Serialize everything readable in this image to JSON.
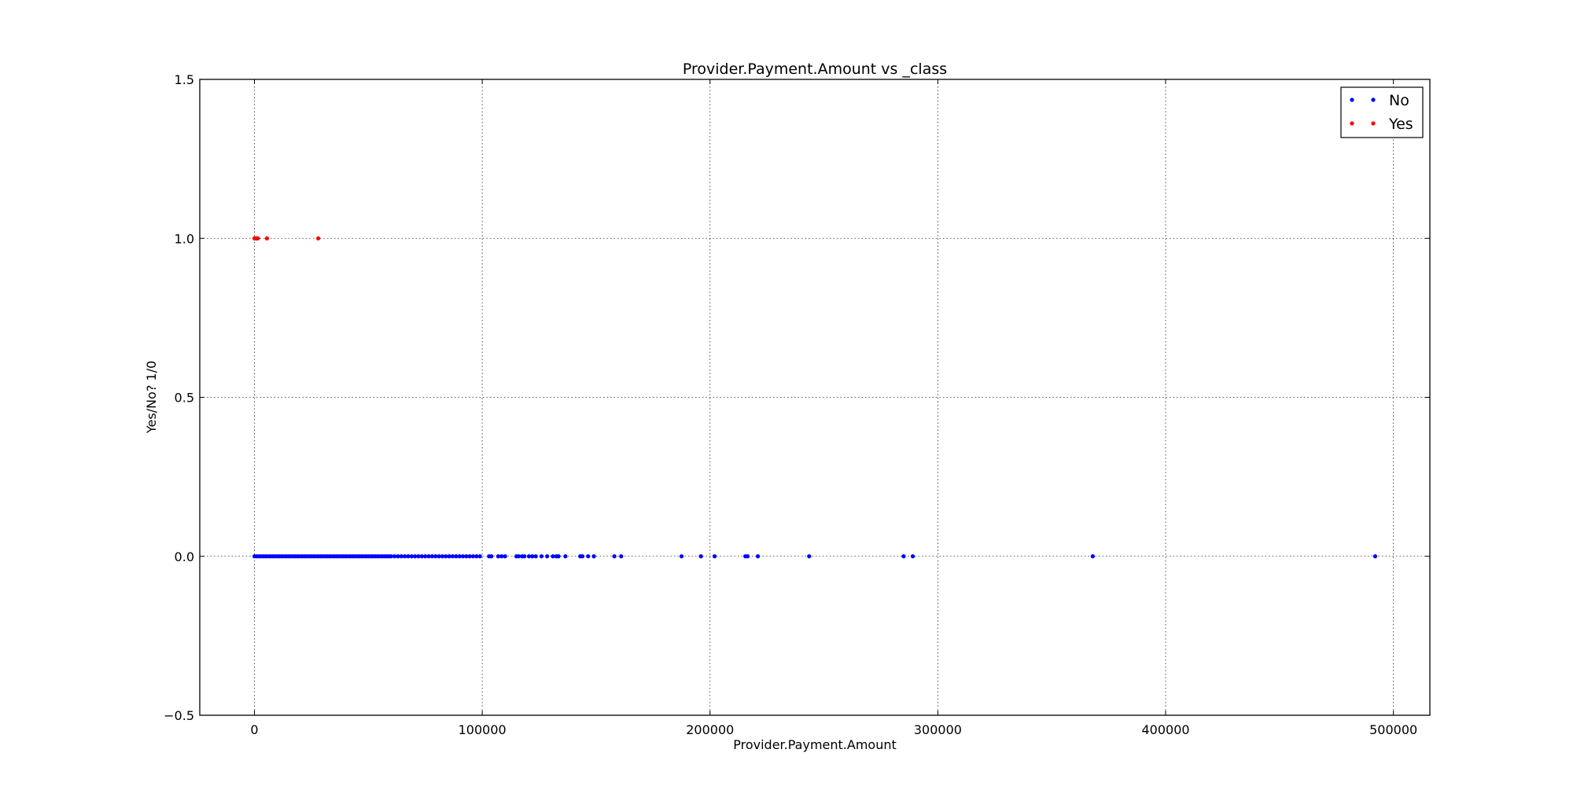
{
  "chart_data": {
    "type": "scatter",
    "title": "Provider.Payment.Amount vs _class",
    "xlabel": "Provider.Payment.Amount",
    "ylabel": "Yes/No? 1/0",
    "xlim": [
      -24000,
      516000
    ],
    "ylim": [
      -0.5,
      1.5
    ],
    "xticks": [
      0,
      100000,
      200000,
      300000,
      400000,
      500000
    ],
    "xtick_labels": [
      "0",
      "100000",
      "200000",
      "300000",
      "400000",
      "500000"
    ],
    "yticks": [
      -0.5,
      0.0,
      0.5,
      1.0,
      1.5
    ],
    "ytick_labels": [
      "−0.5",
      "0.0",
      "0.5",
      "1.0",
      "1.5"
    ],
    "grid": true,
    "legend": "top-right",
    "series": [
      {
        "name": "No",
        "color": "#0000ff",
        "x": [
          0,
          1000,
          2000,
          3000,
          4000,
          5000,
          6000,
          7000,
          8000,
          9000,
          10000,
          11000,
          12000,
          13000,
          14000,
          15000,
          16000,
          17000,
          18000,
          19000,
          20000,
          21000,
          22000,
          23000,
          24000,
          25000,
          26000,
          27000,
          28000,
          29000,
          30000,
          31000,
          32000,
          33000,
          34000,
          35000,
          36000,
          37000,
          38000,
          39000,
          40000,
          41000,
          42000,
          43000,
          44000,
          45000,
          46000,
          47000,
          48000,
          49000,
          50000,
          51000,
          52000,
          53000,
          54000,
          55000,
          56000,
          57000,
          58000,
          59000,
          60000,
          61500,
          63000,
          64500,
          66000,
          67500,
          69000,
          70500,
          72000,
          73500,
          75000,
          76500,
          78000,
          79500,
          81000,
          82500,
          84000,
          85500,
          87000,
          88500,
          90000,
          91500,
          93000,
          94500,
          96000,
          97500,
          99000,
          103000,
          104000,
          107000,
          108500,
          110000,
          115000,
          116000,
          117500,
          118500,
          120500,
          122000,
          123500,
          126000,
          128500,
          131000,
          132500,
          133500,
          136500,
          143000,
          144000,
          146500,
          149000,
          158000,
          161000,
          187500,
          196000,
          202000,
          215500,
          216500,
          221000,
          243500,
          285000,
          289000,
          368000,
          492000
        ],
        "y": [
          0,
          0,
          0,
          0,
          0,
          0,
          0,
          0,
          0,
          0,
          0,
          0,
          0,
          0,
          0,
          0,
          0,
          0,
          0,
          0,
          0,
          0,
          0,
          0,
          0,
          0,
          0,
          0,
          0,
          0,
          0,
          0,
          0,
          0,
          0,
          0,
          0,
          0,
          0,
          0,
          0,
          0,
          0,
          0,
          0,
          0,
          0,
          0,
          0,
          0,
          0,
          0,
          0,
          0,
          0,
          0,
          0,
          0,
          0,
          0,
          0,
          0,
          0,
          0,
          0,
          0,
          0,
          0,
          0,
          0,
          0,
          0,
          0,
          0,
          0,
          0,
          0,
          0,
          0,
          0,
          0,
          0,
          0,
          0,
          0,
          0,
          0,
          0,
          0,
          0,
          0,
          0,
          0,
          0,
          0,
          0,
          0,
          0,
          0,
          0,
          0,
          0,
          0,
          0,
          0,
          0,
          0,
          0,
          0,
          0,
          0,
          0,
          0,
          0,
          0,
          0,
          0,
          0,
          0,
          0,
          0,
          0
        ]
      },
      {
        "name": "Yes",
        "color": "#ff0000",
        "x": [
          0,
          500,
          1000,
          1500,
          5500,
          28000
        ],
        "y": [
          1,
          1,
          1,
          1,
          1,
          1
        ]
      }
    ]
  }
}
